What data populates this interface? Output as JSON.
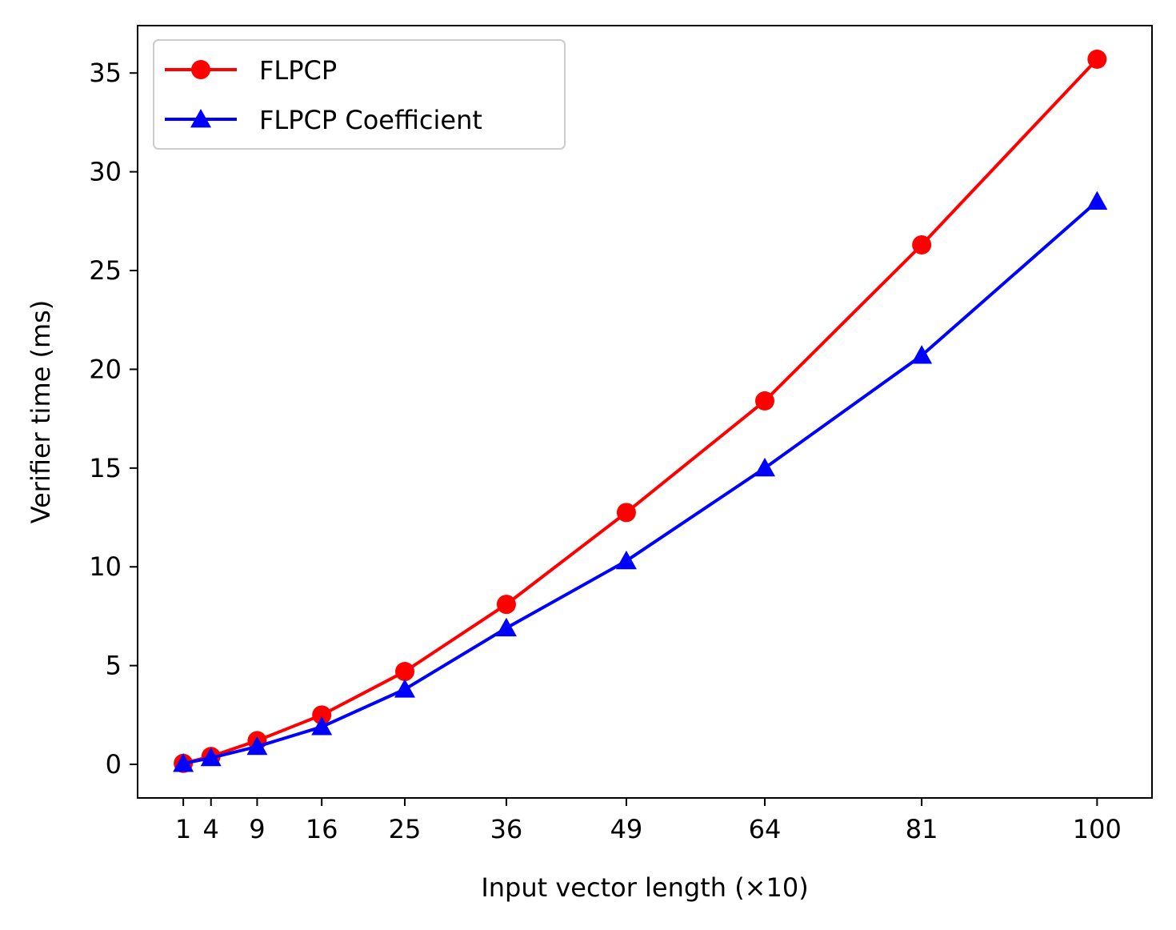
{
  "chart_data": {
    "type": "line",
    "xlabel": "Input vector length (×10)",
    "ylabel": "Verifier time (ms)",
    "x": [
      1,
      4,
      9,
      16,
      25,
      36,
      49,
      64,
      81,
      100
    ],
    "x_tick_labels": [
      "1",
      "4",
      "9",
      "16",
      "25",
      "36",
      "49",
      "64",
      "81",
      "100"
    ],
    "yticks": [
      0,
      5,
      10,
      15,
      20,
      25,
      30,
      35
    ],
    "y_tick_labels": [
      "0",
      "5",
      "10",
      "15",
      "20",
      "25",
      "30",
      "35"
    ],
    "xlim": [
      -3.95,
      105.95
    ],
    "ylim": [
      -1.7,
      37.4
    ],
    "grid": false,
    "legend_position": "upper-left",
    "series": [
      {
        "name": "FLPCP",
        "color": "#ff0000",
        "marker": "circle",
        "values": [
          0.05,
          0.4,
          1.2,
          2.5,
          4.7,
          8.1,
          12.75,
          18.4,
          26.3,
          35.7
        ]
      },
      {
        "name": "FLPCP Coefficient",
        "color": "#0000ff",
        "marker": "triangle",
        "values": [
          0.04,
          0.33,
          0.9,
          1.9,
          3.8,
          6.9,
          10.3,
          15.0,
          20.7,
          28.5
        ]
      }
    ]
  }
}
